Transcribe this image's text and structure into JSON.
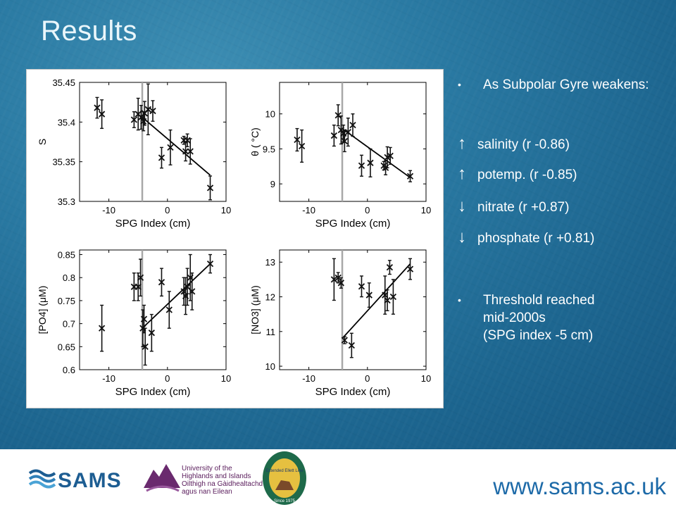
{
  "title": "Results",
  "bullets": {
    "intro": "As Subpolar Gyre weakens:",
    "items": [
      {
        "arrow": "↑",
        "text": "salinity (r -0.86)"
      },
      {
        "arrow": "↑",
        "text": "potemp. (r -0.85)"
      },
      {
        "arrow": "↓",
        "text": "nitrate (r +0.87)"
      },
      {
        "arrow": "↓",
        "text": "phosphate (r +0.81)"
      }
    ],
    "threshold_line1": "Threshold reached",
    "threshold_line2": "mid-2000s",
    "threshold_line3": "(SPG index -5 cm)"
  },
  "footer": {
    "sams": "SAMS",
    "uhi_lines": [
      "University of the",
      "Highlands and Islands",
      "Oilthigh na Gàidhealtachd",
      "agus nan Eilean"
    ],
    "seal_center": "Extended Ellett Line",
    "seal_bottom": "Since 1975",
    "url": "www.sams.ac.uk"
  },
  "colors": {
    "marker": "#111111",
    "threshold": "#a8a8a8",
    "accent": "#1d6aa8"
  },
  "chart_data": [
    {
      "type": "scatter",
      "ylabel": "S",
      "xlabel": "SPG Index (cm)",
      "xlim": [
        -15,
        10
      ],
      "ylim": [
        35.3,
        35.45
      ],
      "xticks": [
        "-10",
        "0",
        "10"
      ],
      "xtick_values": [
        -10,
        0,
        10
      ],
      "yticks": [
        "35.3",
        "35.35",
        "35.4",
        "35.45"
      ],
      "ytick_values": [
        35.3,
        35.35,
        35.4,
        35.45
      ],
      "threshold_x": -4.3,
      "fit": [
        [
          -4.3,
          35.406
        ],
        [
          7.3,
          35.333
        ]
      ],
      "points": [
        {
          "x": -12,
          "y": 35.418,
          "err": 0.013
        },
        {
          "x": -11.2,
          "y": 35.41,
          "err": 0.018
        },
        {
          "x": -5.7,
          "y": 35.403,
          "err": 0.01
        },
        {
          "x": -5,
          "y": 35.41,
          "err": 0.02
        },
        {
          "x": -4.5,
          "y": 35.406,
          "err": 0.015
        },
        {
          "x": -4.1,
          "y": 35.401,
          "err": 0.012
        },
        {
          "x": -3.9,
          "y": 35.411,
          "err": 0.015
        },
        {
          "x": -3.3,
          "y": 35.416,
          "err": 0.032
        },
        {
          "x": -2.5,
          "y": 35.414,
          "err": 0.013
        },
        {
          "x": -1,
          "y": 35.355,
          "err": 0.013
        },
        {
          "x": 0.5,
          "y": 35.368,
          "err": 0.022
        },
        {
          "x": 2.8,
          "y": 35.377,
          "err": 0.005
        },
        {
          "x": 3.1,
          "y": 35.363,
          "err": 0.012
        },
        {
          "x": 3.4,
          "y": 35.377,
          "err": 0.008
        },
        {
          "x": 3.9,
          "y": 35.363,
          "err": 0.016
        },
        {
          "x": 7.3,
          "y": 35.317,
          "err": 0.015
        }
      ]
    },
    {
      "type": "scatter",
      "ylabel": "θ ( °C)",
      "xlabel": "SPG Index (cm)",
      "xlim": [
        -15,
        10
      ],
      "ylim": [
        8.75,
        10.45
      ],
      "xticks": [
        "-10",
        "0",
        "10"
      ],
      "xtick_values": [
        -10,
        0,
        10
      ],
      "yticks": [
        "9",
        "9.5",
        "10"
      ],
      "ytick_values": [
        9,
        9.5,
        10
      ],
      "threshold_x": -4.3,
      "fit": [
        [
          -4.3,
          9.79
        ],
        [
          7.3,
          9.09
        ]
      ],
      "points": [
        {
          "x": -12,
          "y": 9.63,
          "err": 0.16
        },
        {
          "x": -11.2,
          "y": 9.54,
          "err": 0.23
        },
        {
          "x": -5.7,
          "y": 9.69,
          "err": 0.15
        },
        {
          "x": -5,
          "y": 9.98,
          "err": 0.15
        },
        {
          "x": -4.5,
          "y": 9.77,
          "err": 0.2
        },
        {
          "x": -4.1,
          "y": 9.72,
          "err": 0.12
        },
        {
          "x": -3.9,
          "y": 9.61,
          "err": 0.15
        },
        {
          "x": -3.3,
          "y": 9.74,
          "err": 0.2
        },
        {
          "x": -2.5,
          "y": 9.84,
          "err": 0.16
        },
        {
          "x": -1,
          "y": 9.26,
          "err": 0.15
        },
        {
          "x": 0.5,
          "y": 9.3,
          "err": 0.2
        },
        {
          "x": 2.8,
          "y": 9.26,
          "err": 0.06
        },
        {
          "x": 3.1,
          "y": 9.23,
          "err": 0.1
        },
        {
          "x": 3.4,
          "y": 9.38,
          "err": 0.15
        },
        {
          "x": 3.9,
          "y": 9.4,
          "err": 0.12
        },
        {
          "x": 7.3,
          "y": 9.11,
          "err": 0.08
        }
      ]
    },
    {
      "type": "scatter",
      "ylabel": "[PO4] (μM)",
      "xlabel": "SPG Index (cm)",
      "xlim": [
        -15,
        10
      ],
      "ylim": [
        0.6,
        0.86
      ],
      "xticks": [
        "-10",
        "0",
        "10"
      ],
      "xtick_values": [
        -10,
        0,
        10
      ],
      "yticks": [
        "0.6",
        "0.65",
        "0.7",
        "0.75",
        "0.8",
        "0.85"
      ],
      "ytick_values": [
        0.6,
        0.65,
        0.7,
        0.75,
        0.8,
        0.85
      ],
      "threshold_x": -4.3,
      "fit": [
        [
          -4.3,
          0.69
        ],
        [
          7.3,
          0.83
        ]
      ],
      "points": [
        {
          "x": -11.2,
          "y": 0.69,
          "err": 0.05
        },
        {
          "x": -5.7,
          "y": 0.78,
          "err": 0.03
        },
        {
          "x": -5,
          "y": 0.78,
          "err": 0.03
        },
        {
          "x": -4.6,
          "y": 0.8,
          "err": 0.04
        },
        {
          "x": -4.2,
          "y": 0.69,
          "err": 0.04
        },
        {
          "x": -4,
          "y": 0.71,
          "err": 0.03
        },
        {
          "x": -3.8,
          "y": 0.65,
          "err": 0.04
        },
        {
          "x": -2.7,
          "y": 0.68,
          "err": 0.04
        },
        {
          "x": -1,
          "y": 0.79,
          "err": 0.03
        },
        {
          "x": 0.3,
          "y": 0.73,
          "err": 0.04
        },
        {
          "x": 2.8,
          "y": 0.77,
          "err": 0.03
        },
        {
          "x": 3.1,
          "y": 0.76,
          "err": 0.04
        },
        {
          "x": 3.4,
          "y": 0.78,
          "err": 0.04
        },
        {
          "x": 3.9,
          "y": 0.8,
          "err": 0.05
        },
        {
          "x": 4.2,
          "y": 0.77,
          "err": 0.04
        },
        {
          "x": 7.3,
          "y": 0.83,
          "err": 0.02
        }
      ]
    },
    {
      "type": "scatter",
      "ylabel": "[NO3] (μM)",
      "xlabel": "SPG Index (cm)",
      "xlim": [
        -15,
        10
      ],
      "ylim": [
        9.9,
        13.35
      ],
      "xticks": [
        "-10",
        "0",
        "10"
      ],
      "xtick_values": [
        -10,
        0,
        10
      ],
      "yticks": [
        "10",
        "11",
        "12",
        "13"
      ],
      "ytick_values": [
        10,
        11,
        12,
        13
      ],
      "threshold_x": -4.3,
      "fit": [
        [
          -4.3,
          10.8
        ],
        [
          7.3,
          12.95
        ]
      ],
      "points": [
        {
          "x": -5.7,
          "y": 12.5,
          "err": 0.6
        },
        {
          "x": -5,
          "y": 12.55,
          "err": 0.15
        },
        {
          "x": -4.5,
          "y": 12.4,
          "err": 0.15
        },
        {
          "x": -3.9,
          "y": 10.75,
          "err": 0.1
        },
        {
          "x": -2.7,
          "y": 10.6,
          "err": 0.35
        },
        {
          "x": -1,
          "y": 12.3,
          "err": 0.3
        },
        {
          "x": 0.3,
          "y": 12.05,
          "err": 0.35
        },
        {
          "x": 3,
          "y": 12.05,
          "err": 0.55
        },
        {
          "x": 3.4,
          "y": 11.9,
          "err": 0.3
        },
        {
          "x": 3.8,
          "y": 12.85,
          "err": 0.2
        },
        {
          "x": 4.4,
          "y": 12.0,
          "err": 0.5
        },
        {
          "x": 7.3,
          "y": 12.8,
          "err": 0.3
        }
      ]
    }
  ]
}
